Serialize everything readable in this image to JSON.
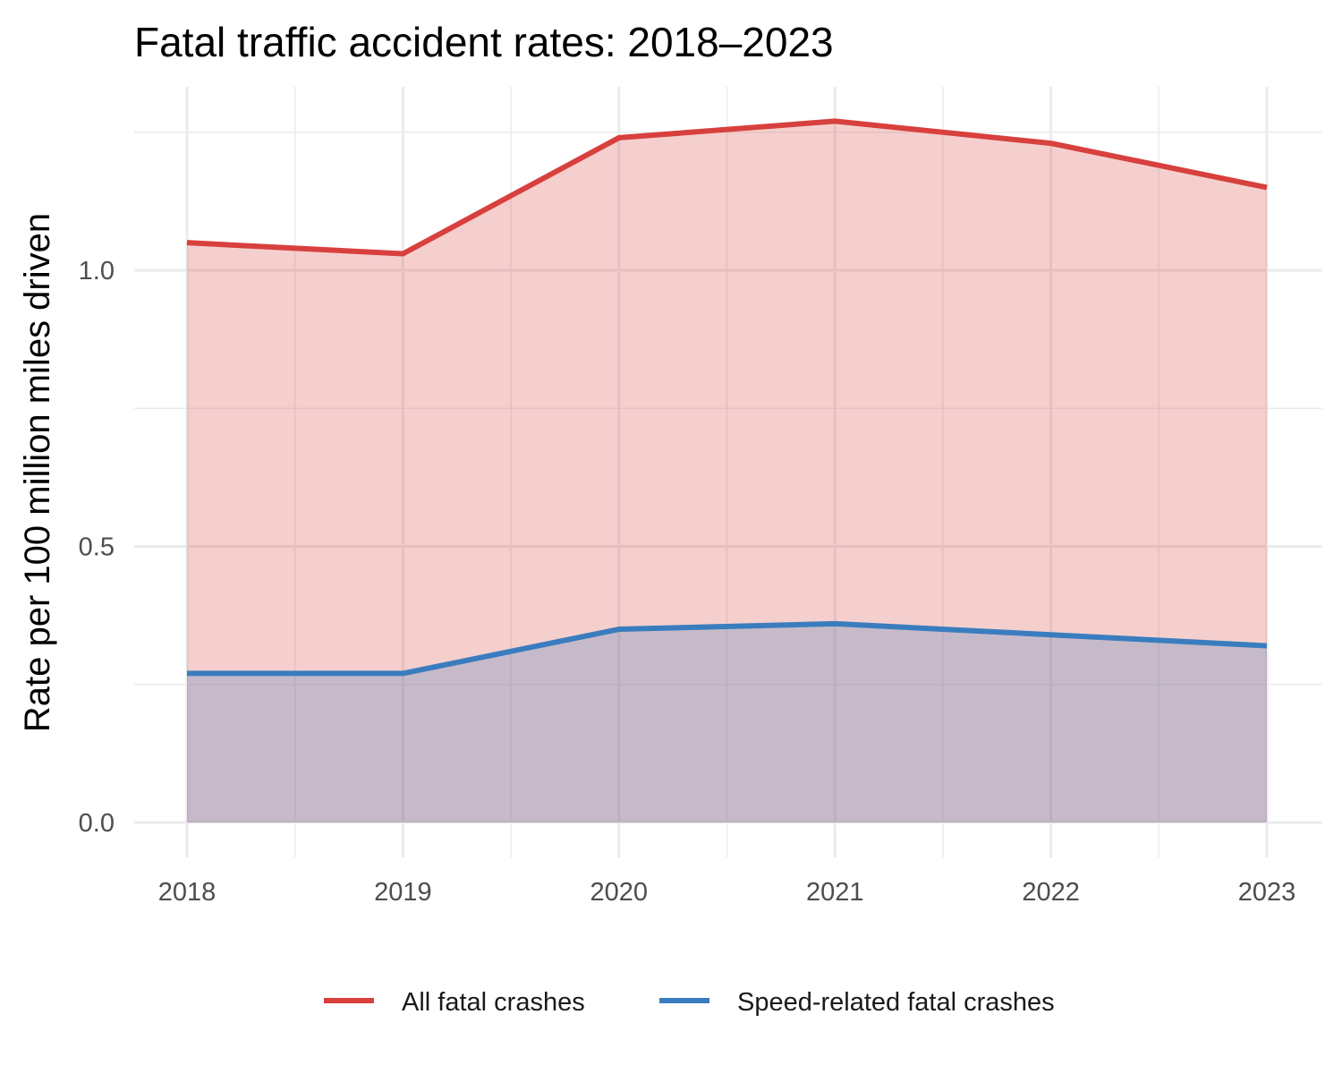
{
  "chart_data": {
    "type": "area",
    "title": "Fatal traffic accident rates: 2018–2023",
    "xlabel": "",
    "ylabel": "Rate per 100 million miles driven",
    "x": [
      "2018",
      "2019",
      "2020",
      "2021",
      "2022",
      "2023"
    ],
    "ylim": [
      0,
      1.25
    ],
    "yticks": [
      "0.0",
      "0.5",
      "1.0"
    ],
    "grid": true,
    "legend_position": "bottom",
    "series": [
      {
        "name": "All fatal crashes",
        "values": [
          1.05,
          1.03,
          1.24,
          1.27,
          1.23,
          1.15
        ],
        "color": "#d7403d",
        "fill": "#f4cdcd"
      },
      {
        "name": "Speed-related fatal crashes",
        "values": [
          0.27,
          0.27,
          0.35,
          0.36,
          0.34,
          0.32
        ],
        "color": "#3a7dbf",
        "fill": "#cbdeed"
      }
    ]
  }
}
